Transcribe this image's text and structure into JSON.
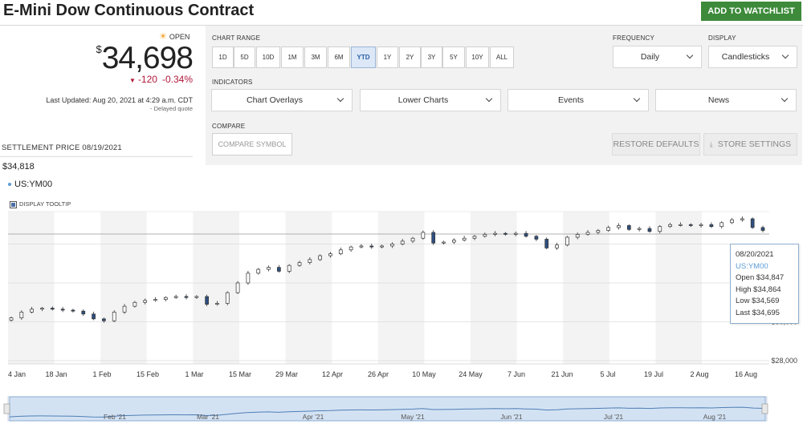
{
  "header": {
    "title": "E-Mini Dow Continuous Contract",
    "watchlist_label": "ADD TO WATCHLIST"
  },
  "quote": {
    "status": "OPEN",
    "currency": "$",
    "price": "34,698",
    "change": "-120",
    "change_pct": "-0.34%",
    "last_updated": "Last Updated: Aug 20, 2021 at 4:29 a.m. CDT",
    "delayed": "Delayed quote"
  },
  "settlement": {
    "label": "SETTLEMENT PRICE 08/19/2021",
    "value": "$34,818"
  },
  "legend": {
    "symbol": "US:YM00",
    "tooltip_label": "DISPLAY TOOLTIP"
  },
  "settings": {
    "chart_range_label": "CHART RANGE",
    "ranges": [
      "1D",
      "5D",
      "10D",
      "1M",
      "3M",
      "6M",
      "YTD",
      "1Y",
      "2Y",
      "3Y",
      "5Y",
      "10Y",
      "ALL"
    ],
    "active_range": "YTD",
    "frequency_label": "FREQUENCY",
    "frequency_value": "Daily",
    "display_label": "DISPLAY",
    "display_value": "Candlesticks",
    "indicators_label": "INDICATORS",
    "indicators": [
      "Chart Overlays",
      "Lower Charts",
      "Events",
      "News"
    ],
    "compare_label": "COMPARE",
    "compare_placeholder": "COMPARE SYMBOL",
    "restore_label": "RESTORE DEFAULTS",
    "store_label": "STORE SETTINGS"
  },
  "tooltip": {
    "date": "08/20/2021",
    "symbol": "US:YM00",
    "open": "Open  $34,847",
    "high": "High  $34,864",
    "low": "Low  $34,569",
    "last": "Last  $34,695"
  },
  "colors": {
    "accent": "#3c8a3a",
    "negative": "#b0183a",
    "series": "#5b9bd5"
  },
  "chart_data": {
    "type": "candlestick",
    "symbol": "US:YM00",
    "x_tick_labels": [
      "4 Jan",
      "18 Jan",
      "1 Feb",
      "15 Feb",
      "1 Mar",
      "15 Mar",
      "29 Mar",
      "12 Apr",
      "26 Apr",
      "10 May",
      "24 May",
      "7 Jun",
      "21 Jun",
      "5 Jul",
      "19 Jul",
      "2 Aug",
      "16 Aug"
    ],
    "y_tick_labels": [
      "$28,000",
      "$30,000"
    ],
    "y_axis_position": "right",
    "closes": [
      30200,
      30500,
      30650,
      30700,
      30650,
      30600,
      30550,
      30400,
      30150,
      30050,
      30500,
      30800,
      31000,
      31100,
      31150,
      31250,
      31300,
      31250,
      31300,
      30900,
      30950,
      31500,
      32000,
      32500,
      32700,
      32800,
      32600,
      32900,
      33050,
      33200,
      33400,
      33500,
      33700,
      33850,
      33900,
      33850,
      33900,
      34000,
      34150,
      34300,
      34600,
      34050,
      34100,
      34200,
      34300,
      34400,
      34500,
      34550,
      34500,
      34550,
      34400,
      34250,
      33800,
      33950,
      34350,
      34500,
      34600,
      34700,
      34850,
      34950,
      34750,
      34800,
      34650,
      34900,
      35000,
      35000,
      34950,
      35000,
      34900,
      35100,
      35250,
      35300,
      34850,
      34700
    ],
    "navigator_labels": [
      "Feb '21",
      "Mar '21",
      "Apr '21",
      "May '21",
      "Jun '21",
      "Jul '21",
      "Aug '21"
    ]
  }
}
